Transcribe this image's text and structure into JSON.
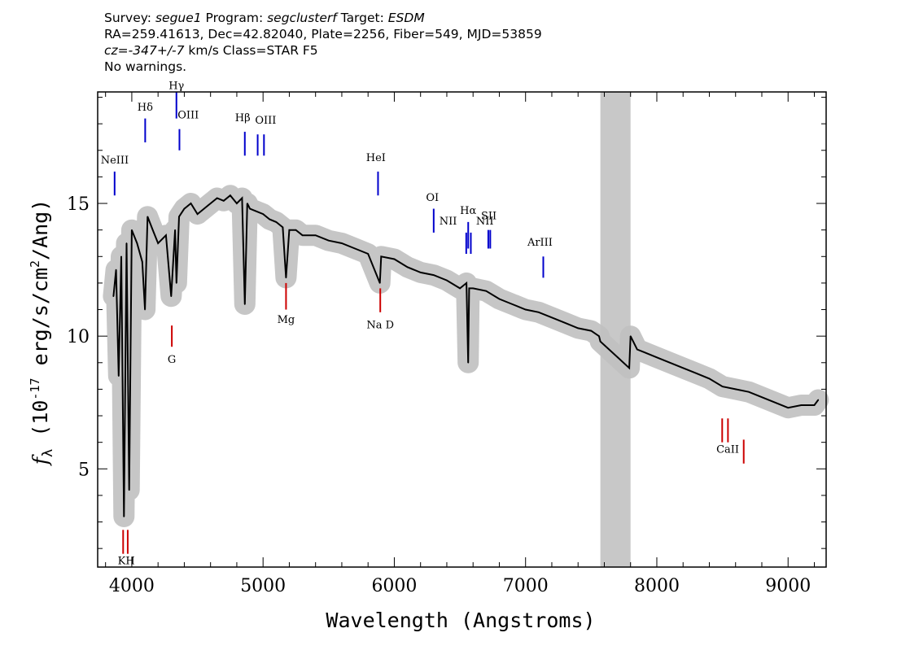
{
  "header": {
    "line1": {
      "survey_label": "Survey: ",
      "survey": "segue1",
      "program_label": " Program: ",
      "program": "segclusterf",
      "target_label": " Target: ",
      "target": "ESDM"
    },
    "line2": "RA=259.41613, Dec=42.82040, Plate=2256, Fiber=549, MJD=53859",
    "line3": {
      "cz_label": "cz=",
      "cz_value": "-347+/-7",
      "rest": " km/s Class=STAR F5"
    },
    "line4": "No warnings."
  },
  "chart_data": {
    "type": "line",
    "xlabel": "Wavelength (Angstroms)",
    "ylabel": "f_λ (10^-17 erg/s/cm^2/Ang)",
    "xlim": [
      3740,
      9290
    ],
    "ylim": [
      1.3,
      19.2
    ],
    "xticks": [
      4000,
      5000,
      6000,
      7000,
      8000,
      9000
    ],
    "yticks": [
      5,
      10,
      15
    ],
    "masked_region": [
      7570,
      7800
    ],
    "series": [
      {
        "name": "flux",
        "color": "#000000",
        "x": [
          3860,
          3880,
          3900,
          3920,
          3940,
          3960,
          3980,
          4000,
          4040,
          4080,
          4100,
          4120,
          4160,
          4200,
          4260,
          4300,
          4330,
          4340,
          4360,
          4400,
          4450,
          4500,
          4550,
          4600,
          4650,
          4700,
          4750,
          4800,
          4840,
          4861,
          4880,
          4900,
          4950,
          5000,
          5050,
          5100,
          5150,
          5175,
          5200,
          5250,
          5300,
          5400,
          5500,
          5600,
          5700,
          5800,
          5890,
          5900,
          6000,
          6100,
          6200,
          6300,
          6400,
          6500,
          6550,
          6563,
          6570,
          6600,
          6700,
          6800,
          6900,
          7000,
          7100,
          7200,
          7300,
          7400,
          7500,
          7560,
          7570,
          7790,
          7800,
          7850,
          7900,
          8000,
          8100,
          8200,
          8300,
          8400,
          8500,
          8600,
          8700,
          8800,
          8900,
          9000,
          9100,
          9200,
          9230
        ],
        "y": [
          11.5,
          12.5,
          8.5,
          13.0,
          3.2,
          13.5,
          4.2,
          14.0,
          13.5,
          12.8,
          11.0,
          14.5,
          14.0,
          13.5,
          13.8,
          11.5,
          14.0,
          12.0,
          14.5,
          14.8,
          15.0,
          14.6,
          14.8,
          15.0,
          15.2,
          15.1,
          15.3,
          15.0,
          15.2,
          11.2,
          15.0,
          14.8,
          14.7,
          14.6,
          14.4,
          14.3,
          14.1,
          12.2,
          14.0,
          14.0,
          13.8,
          13.8,
          13.6,
          13.5,
          13.3,
          13.1,
          12.0,
          13.0,
          12.9,
          12.6,
          12.4,
          12.3,
          12.1,
          11.8,
          12.0,
          9.0,
          11.8,
          11.8,
          11.7,
          11.4,
          11.2,
          11.0,
          10.9,
          10.7,
          10.5,
          10.3,
          10.2,
          10.0,
          9.8,
          8.8,
          10.0,
          9.5,
          9.4,
          9.2,
          9.0,
          8.8,
          8.6,
          8.4,
          8.1,
          8.0,
          7.9,
          7.7,
          7.5,
          7.3,
          7.4,
          7.4,
          7.6
        ]
      }
    ],
    "line_markers": [
      {
        "label": "NeIII",
        "x": 3869,
        "y1": 15.3,
        "y2": 16.2,
        "lx": 3870,
        "ly": 16.5,
        "color": "#0000cc"
      },
      {
        "label": "Hδ",
        "x": 4102,
        "y1": 17.3,
        "y2": 18.2,
        "lx": 4102,
        "ly": 18.5,
        "color": "#0000cc"
      },
      {
        "label": "Hγ",
        "x": 4340,
        "y1": 18.2,
        "y2": 19.2,
        "lx": 4340,
        "ly": 19.3,
        "color": "#0000cc"
      },
      {
        "label": "OIII",
        "x": 4363,
        "y1": 17.0,
        "y2": 17.8,
        "lx": 4430,
        "ly": 18.2,
        "color": "#0000cc"
      },
      {
        "label": "Hβ",
        "x": 4861,
        "y1": 16.8,
        "y2": 17.7,
        "lx": 4845,
        "ly": 18.1,
        "color": "#0000cc"
      },
      {
        "label": "OIII",
        "x": 4959,
        "y1": 16.8,
        "y2": 17.6,
        "lx": 5020,
        "ly": 18.0,
        "color": "#0000cc"
      },
      {
        "label": "OIII",
        "x": 5007,
        "y1": 16.8,
        "y2": 17.6,
        "lx": null,
        "ly": null,
        "color": "#0000cc"
      },
      {
        "label": "HeI",
        "x": 5876,
        "y1": 15.3,
        "y2": 16.2,
        "lx": 5860,
        "ly": 16.6,
        "color": "#0000cc"
      },
      {
        "label": "OI",
        "x": 6300,
        "y1": 13.9,
        "y2": 14.8,
        "lx": 6290,
        "ly": 15.1,
        "color": "#0000cc"
      },
      {
        "label": "NII",
        "x": 6548,
        "y1": 13.1,
        "y2": 13.9,
        "lx": 6410,
        "ly": 14.2,
        "color": "#0000cc"
      },
      {
        "label": "Hα",
        "x": 6563,
        "y1": 13.3,
        "y2": 14.3,
        "lx": 6563,
        "ly": 14.6,
        "color": "#0000cc"
      },
      {
        "label": "NII",
        "x": 6583,
        "y1": 13.1,
        "y2": 13.9,
        "lx": 6690,
        "ly": 14.2,
        "color": "#0000cc"
      },
      {
        "label": "SII",
        "x": 6716,
        "y1": 13.3,
        "y2": 14.0,
        "lx": 6720,
        "ly": 14.4,
        "color": "#0000cc"
      },
      {
        "label": "SII",
        "x": 6731,
        "y1": 13.3,
        "y2": 14.0,
        "lx": null,
        "ly": null,
        "color": "#0000cc"
      },
      {
        "label": "ArIII",
        "x": 7135,
        "y1": 12.2,
        "y2": 13.0,
        "lx": 7110,
        "ly": 13.4,
        "color": "#0000cc"
      },
      {
        "label": "KH",
        "x": 3934,
        "y1": 1.8,
        "y2": 2.7,
        "lx": 3958,
        "ly": 1.4,
        "color": "#cc0000"
      },
      {
        "label": "KH",
        "x": 3969,
        "y1": 1.8,
        "y2": 2.7,
        "lx": null,
        "ly": null,
        "color": "#cc0000"
      },
      {
        "label": "G",
        "x": 4305,
        "y1": 9.6,
        "y2": 10.4,
        "lx": 4305,
        "ly": 9.0,
        "color": "#cc0000"
      },
      {
        "label": "Mg",
        "x": 5175,
        "y1": 11.0,
        "y2": 12.0,
        "lx": 5175,
        "ly": 10.5,
        "color": "#cc0000"
      },
      {
        "label": "Na D",
        "x": 5893,
        "y1": 10.9,
        "y2": 11.8,
        "lx": 5893,
        "ly": 10.3,
        "color": "#cc0000"
      },
      {
        "label": "CaII",
        "x": 8498,
        "y1": 6.0,
        "y2": 6.9,
        "lx": 8540,
        "ly": 5.6,
        "color": "#cc0000"
      },
      {
        "label": "CaII",
        "x": 8542,
        "y1": 6.0,
        "y2": 6.9,
        "lx": null,
        "ly": null,
        "color": "#cc0000"
      },
      {
        "label": "CaII",
        "x": 8662,
        "y1": 5.2,
        "y2": 6.1,
        "lx": null,
        "ly": null,
        "color": "#cc0000"
      }
    ],
    "colors": {
      "flux": "#000000",
      "error_band": "#c0c0c0",
      "mask": "#c8c8c8",
      "emission": "#0000cc",
      "absorption": "#cc0000"
    }
  }
}
